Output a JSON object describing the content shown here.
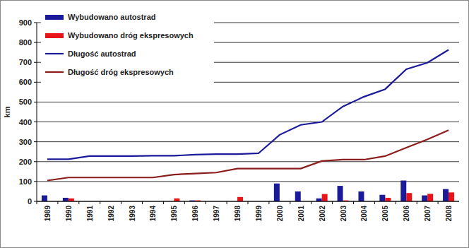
{
  "chart_data": {
    "type": "bar",
    "y_label": "km",
    "categories": [
      "1989",
      "1990",
      "1991",
      "1992",
      "1993",
      "1994",
      "1995",
      "1996",
      "1997",
      "1998",
      "1999",
      "2000",
      "2001",
      "2002",
      "2003",
      "2004",
      "2005",
      "2006",
      "2007",
      "2008"
    ],
    "series": [
      {
        "name": "Wybudowano autostrad",
        "type": "bar",
        "color": "#1a1a9a",
        "values": [
          30,
          18,
          0,
          0,
          0,
          0,
          0,
          5,
          0,
          0,
          0,
          90,
          50,
          15,
          78,
          50,
          33,
          105,
          30,
          62
        ]
      },
      {
        "name": "Wybudowano dróg ekspresowych",
        "type": "bar",
        "color": "#e8141a",
        "values": [
          0,
          15,
          0,
          0,
          0,
          0,
          15,
          5,
          0,
          22,
          0,
          0,
          0,
          37,
          5,
          0,
          18,
          42,
          38,
          45
        ]
      },
      {
        "name": "Długość autostrad",
        "type": "line",
        "color": "#1a1a9a",
        "values": [
          212,
          212,
          228,
          228,
          228,
          230,
          230,
          235,
          238,
          238,
          242,
          335,
          385,
          400,
          478,
          527,
          565,
          665,
          698,
          763
        ]
      },
      {
        "name": "Długość dróg ekspresowych",
        "type": "line",
        "color": "#8b1c1c",
        "values": [
          105,
          120,
          120,
          120,
          120,
          120,
          135,
          140,
          145,
          165,
          165,
          165,
          165,
          203,
          210,
          210,
          228,
          270,
          312,
          358
        ]
      }
    ],
    "ylim": [
      0,
      900
    ],
    "yticks": [
      0,
      100,
      200,
      300,
      400,
      500,
      600,
      700,
      800,
      900
    ],
    "grid": true,
    "legend": "top-left"
  }
}
